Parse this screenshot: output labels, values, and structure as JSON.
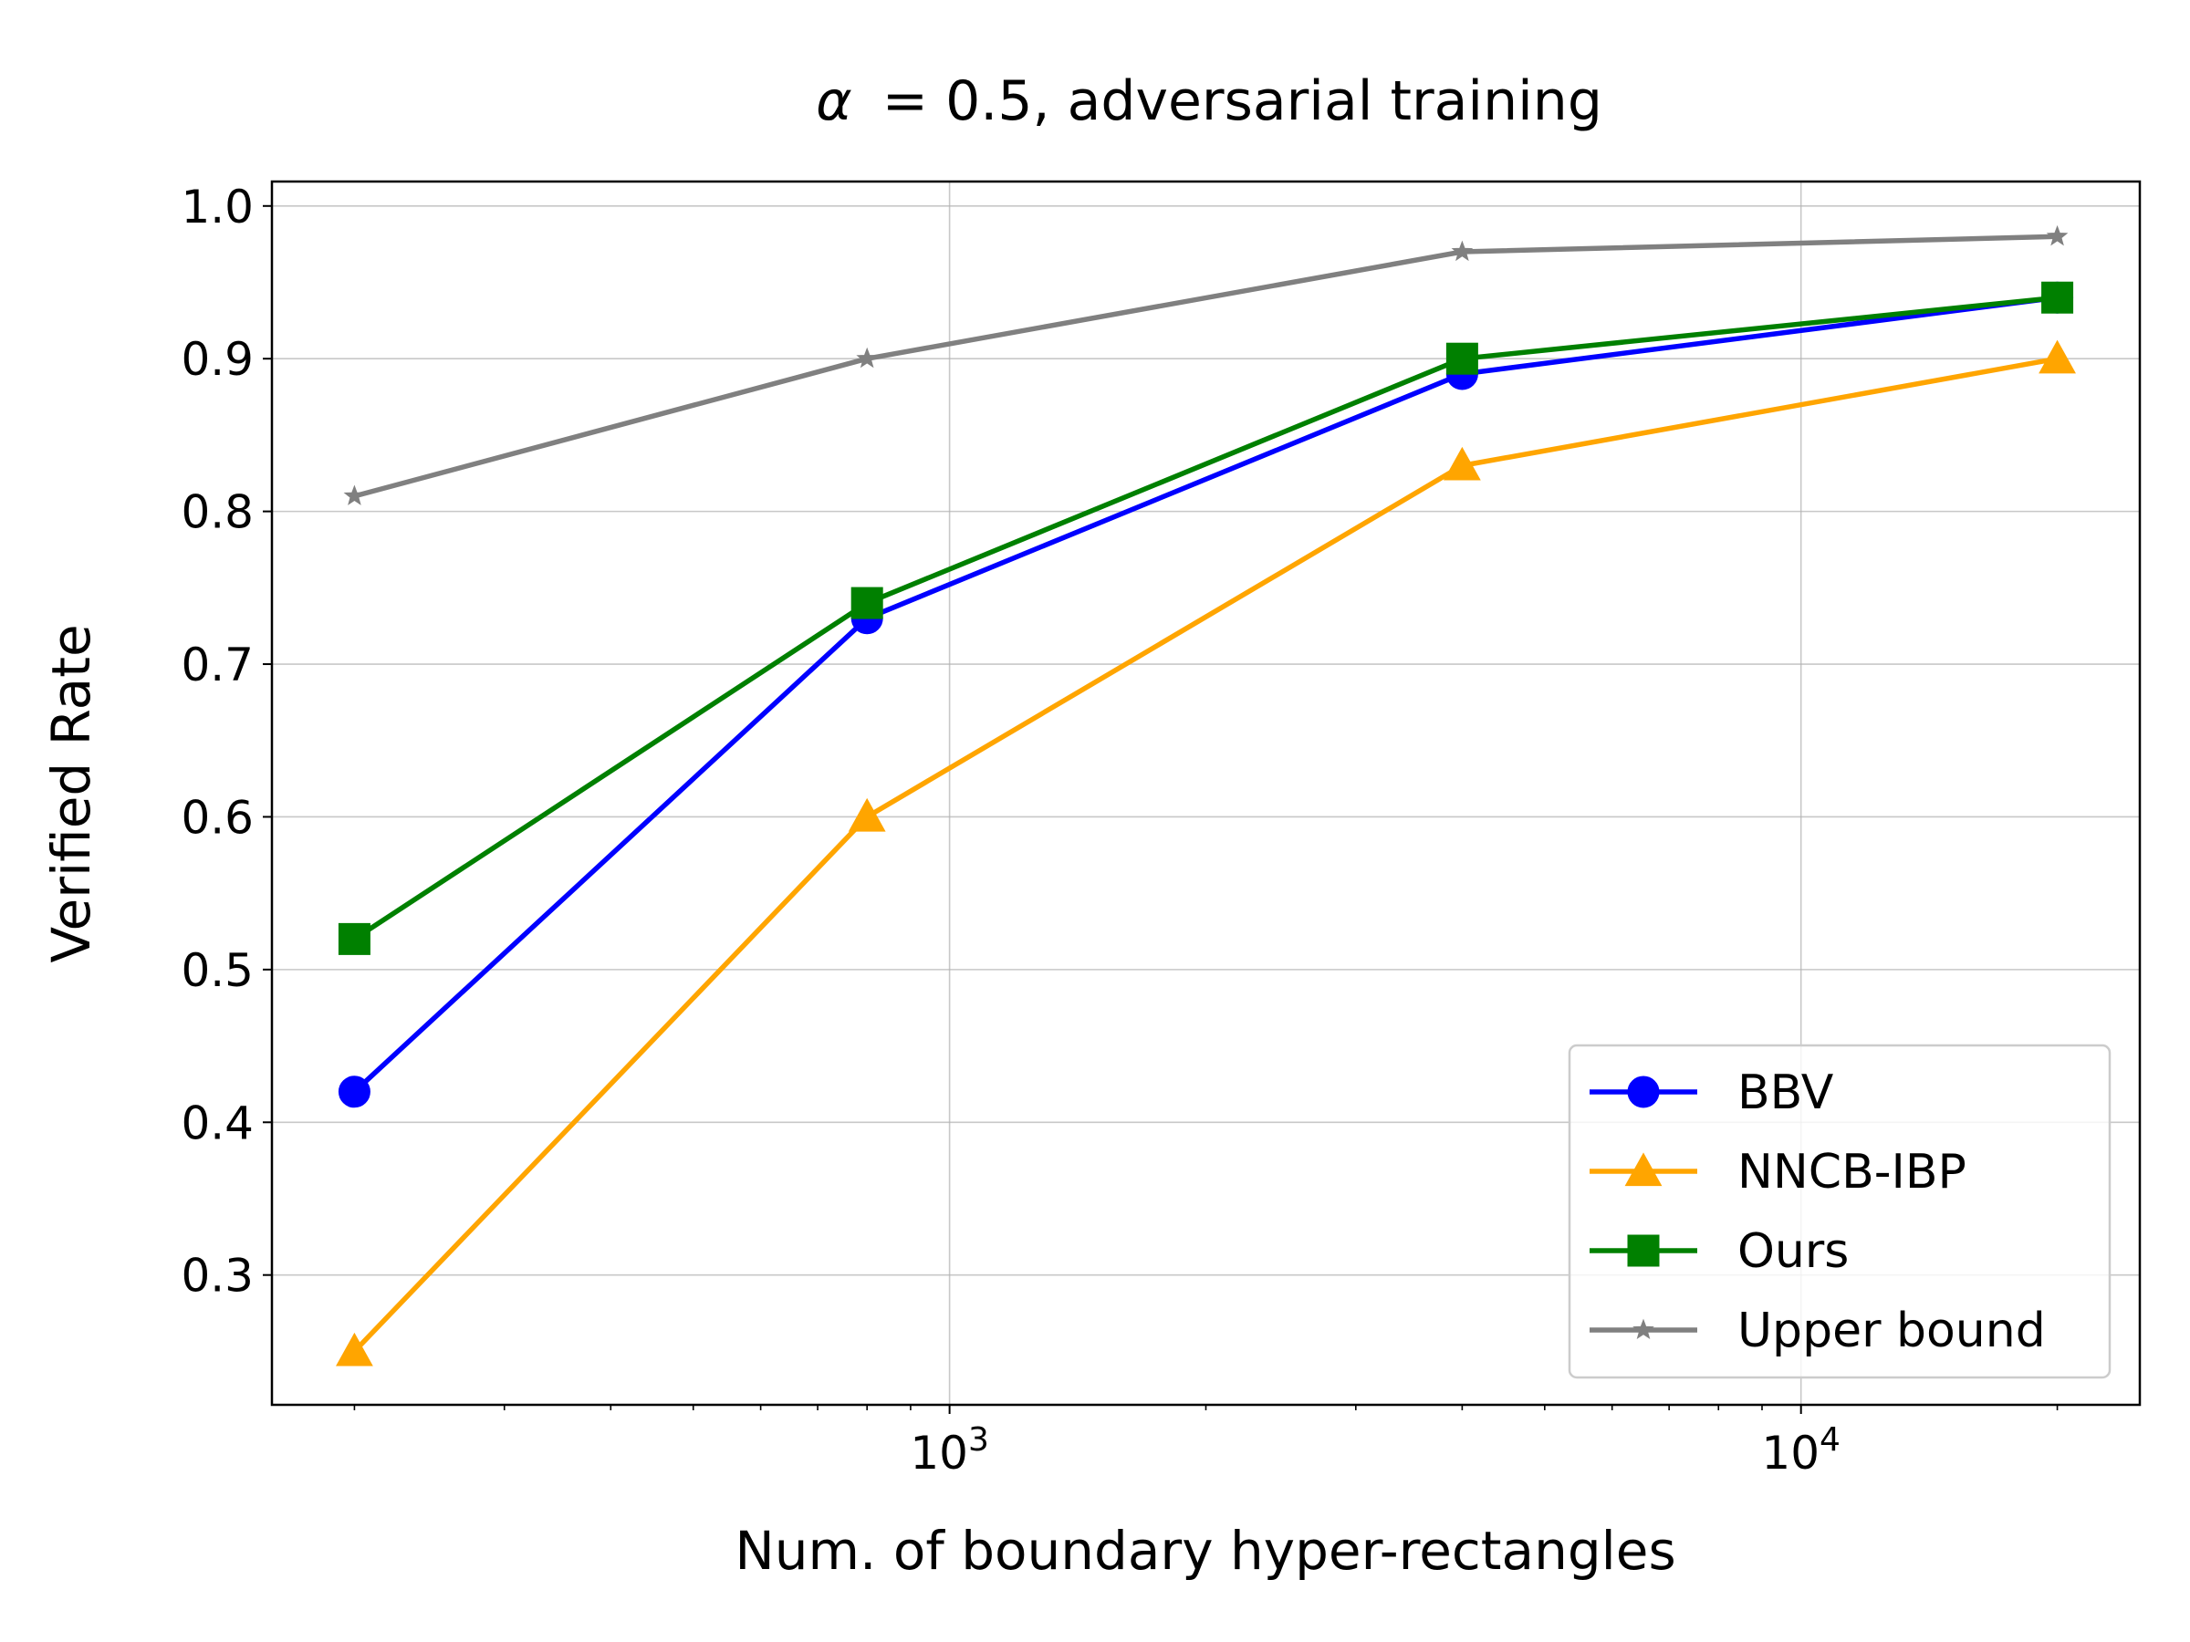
{
  "chart_data": {
    "type": "line",
    "title_main": "= 0.5, adversarial training",
    "title_symbol": "α",
    "xlabel": "Num. of boundary hyper-rectangles",
    "ylabel": "Verified Rate",
    "x_scale": "log",
    "x": [
      200,
      800,
      4000,
      20000
    ],
    "xlim": [
      160,
      25000
    ],
    "ylim": [
      0.215,
      1.016
    ],
    "xticks_major": [
      {
        "value": 1000,
        "base": "10",
        "exp": "3"
      },
      {
        "value": 10000,
        "base": "10",
        "exp": "4"
      }
    ],
    "yticks": [
      {
        "value": 0.3,
        "label": "0.3"
      },
      {
        "value": 0.4,
        "label": "0.4"
      },
      {
        "value": 0.5,
        "label": "0.5"
      },
      {
        "value": 0.6,
        "label": "0.6"
      },
      {
        "value": 0.7,
        "label": "0.7"
      },
      {
        "value": 0.8,
        "label": "0.8"
      },
      {
        "value": 0.9,
        "label": "0.9"
      },
      {
        "value": 1.0,
        "label": "1.0"
      }
    ],
    "grid": true,
    "legend_position": "lower-right",
    "series": [
      {
        "name": "BBV",
        "color": "#0000ff",
        "marker": "circle",
        "values": [
          0.42,
          0.73,
          0.89,
          0.94
        ]
      },
      {
        "name": "NNCB-IBP",
        "color": "#ffa500",
        "marker": "triangle",
        "values": [
          0.25,
          0.6,
          0.83,
          0.9
        ]
      },
      {
        "name": "Ours",
        "color": "#008000",
        "marker": "square",
        "values": [
          0.52,
          0.74,
          0.9,
          0.94
        ]
      },
      {
        "name": "Upper bound",
        "color": "#808080",
        "marker": "star",
        "values": [
          0.81,
          0.9,
          0.97,
          0.98
        ]
      }
    ]
  }
}
